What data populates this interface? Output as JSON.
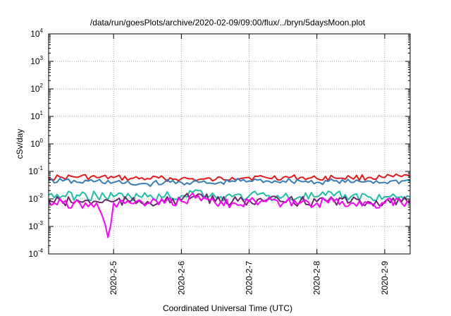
{
  "chart_data": {
    "type": "line",
    "title": "/data/run/goesPlots/archive/2020-02-09/09:00/flux/../bryn/5daysMoon.plot",
    "xlabel": "Coordinated Universal Time (UTC)",
    "ylabel": "cSv/day",
    "y_scale": "log",
    "ylim": [
      0.0001,
      10000
    ],
    "xlim": [
      "2020-02-04T01:00",
      "2020-02-09T09:00"
    ],
    "grid": true,
    "y_ticks": [
      {
        "base": "10",
        "exp": "-4",
        "value": 0.0001
      },
      {
        "base": "10",
        "exp": "-3",
        "value": 0.001
      },
      {
        "base": "10",
        "exp": "-2",
        "value": 0.01
      },
      {
        "base": "10",
        "exp": "-1",
        "value": 0.1
      },
      {
        "base": "10",
        "exp": "0",
        "value": 1
      },
      {
        "base": "10",
        "exp": "1",
        "value": 10
      },
      {
        "base": "10",
        "exp": "2",
        "value": 100
      },
      {
        "base": "10",
        "exp": "3",
        "value": 1000
      },
      {
        "base": "10",
        "exp": "4",
        "value": 10000
      }
    ],
    "x_ticks": [
      {
        "label": "2020-2-5",
        "value": "2020-02-05T00:00"
      },
      {
        "label": "2020-2-6",
        "value": "2020-02-06T00:00"
      },
      {
        "label": "2020-2-7",
        "value": "2020-02-07T00:00"
      },
      {
        "label": "2020-2-8",
        "value": "2020-02-08T00:00"
      },
      {
        "label": "2020-2-9",
        "value": "2020-02-09T00:00"
      }
    ],
    "series": [
      {
        "color": "#e41a1c",
        "x": [
          "2020-02-04T01:00",
          "2020-02-04T06:00",
          "2020-02-04T12:00",
          "2020-02-04T18:00",
          "2020-02-05T00:00",
          "2020-02-05T06:00",
          "2020-02-05T12:00",
          "2020-02-05T18:00",
          "2020-02-06T00:00",
          "2020-02-06T06:00",
          "2020-02-06T12:00",
          "2020-02-06T18:00",
          "2020-02-07T00:00",
          "2020-02-07T06:00",
          "2020-02-07T12:00",
          "2020-02-07T18:00",
          "2020-02-08T00:00",
          "2020-02-08T06:00",
          "2020-02-08T12:00",
          "2020-02-08T18:00",
          "2020-02-09T00:00",
          "2020-02-09T06:00",
          "2020-02-09T09:00"
        ],
        "y": [
          0.06,
          0.06,
          0.065,
          0.06,
          0.06,
          0.055,
          0.055,
          0.055,
          0.055,
          0.05,
          0.05,
          0.06,
          0.06,
          0.06,
          0.06,
          0.06,
          0.055,
          0.06,
          0.06,
          0.06,
          0.06,
          0.065,
          0.065
        ]
      },
      {
        "color": "#377eb8",
        "x": [
          "2020-02-04T01:00",
          "2020-02-04T06:00",
          "2020-02-04T12:00",
          "2020-02-04T18:00",
          "2020-02-05T00:00",
          "2020-02-05T06:00",
          "2020-02-05T12:00",
          "2020-02-05T18:00",
          "2020-02-06T00:00",
          "2020-02-06T06:00",
          "2020-02-06T12:00",
          "2020-02-06T18:00",
          "2020-02-07T00:00",
          "2020-02-07T06:00",
          "2020-02-07T12:00",
          "2020-02-07T18:00",
          "2020-02-08T00:00",
          "2020-02-08T06:00",
          "2020-02-08T12:00",
          "2020-02-08T18:00",
          "2020-02-09T00:00",
          "2020-02-09T06:00",
          "2020-02-09T09:00"
        ],
        "y": [
          0.045,
          0.045,
          0.04,
          0.045,
          0.04,
          0.035,
          0.035,
          0.04,
          0.04,
          0.04,
          0.035,
          0.045,
          0.045,
          0.045,
          0.045,
          0.045,
          0.04,
          0.045,
          0.04,
          0.045,
          0.04,
          0.045,
          0.045
        ]
      },
      {
        "color": "#1fbfa5",
        "x": [
          "2020-02-04T01:00",
          "2020-02-04T06:00",
          "2020-02-04T12:00",
          "2020-02-04T18:00",
          "2020-02-05T00:00",
          "2020-02-05T06:00",
          "2020-02-05T12:00",
          "2020-02-05T18:00",
          "2020-02-06T00:00",
          "2020-02-06T06:00",
          "2020-02-06T12:00",
          "2020-02-06T18:00",
          "2020-02-07T00:00",
          "2020-02-07T06:00",
          "2020-02-07T12:00",
          "2020-02-07T18:00",
          "2020-02-08T00:00",
          "2020-02-08T06:00",
          "2020-02-08T12:00",
          "2020-02-08T18:00",
          "2020-02-09T00:00",
          "2020-02-09T06:00",
          "2020-02-09T09:00"
        ],
        "y": [
          0.014,
          0.013,
          0.013,
          0.013,
          0.012,
          0.012,
          0.012,
          0.012,
          0.013,
          0.02,
          0.012,
          0.012,
          0.013,
          0.013,
          0.012,
          0.012,
          0.012,
          0.013,
          0.012,
          0.012,
          0.012,
          0.012,
          0.012
        ]
      },
      {
        "color": "#6b2a6e",
        "x": [
          "2020-02-04T01:00",
          "2020-02-04T06:00",
          "2020-02-04T12:00",
          "2020-02-04T18:00",
          "2020-02-05T00:00",
          "2020-02-05T06:00",
          "2020-02-05T12:00",
          "2020-02-05T18:00",
          "2020-02-06T00:00",
          "2020-02-06T06:00",
          "2020-02-06T12:00",
          "2020-02-06T18:00",
          "2020-02-07T00:00",
          "2020-02-07T06:00",
          "2020-02-07T12:00",
          "2020-02-07T18:00",
          "2020-02-08T00:00",
          "2020-02-08T06:00",
          "2020-02-08T12:00",
          "2020-02-08T18:00",
          "2020-02-09T00:00",
          "2020-02-09T06:00",
          "2020-02-09T09:00"
        ],
        "y": [
          0.009,
          0.008,
          0.008,
          0.008,
          0.008,
          0.008,
          0.008,
          0.008,
          0.009,
          0.015,
          0.008,
          0.008,
          0.009,
          0.009,
          0.008,
          0.008,
          0.008,
          0.009,
          0.008,
          0.008,
          0.008,
          0.008,
          0.008
        ]
      },
      {
        "color": "#ff00ff",
        "x": [
          "2020-02-04T01:00",
          "2020-02-04T06:00",
          "2020-02-04T12:00",
          "2020-02-04T18:00",
          "2020-02-04T22:00",
          "2020-02-05T00:00",
          "2020-02-05T06:00",
          "2020-02-05T12:00",
          "2020-02-05T18:00",
          "2020-02-06T00:00",
          "2020-02-06T06:00",
          "2020-02-06T12:00",
          "2020-02-06T18:00",
          "2020-02-07T00:00",
          "2020-02-07T06:00",
          "2020-02-07T12:00",
          "2020-02-07T18:00",
          "2020-02-08T00:00",
          "2020-02-08T06:00",
          "2020-02-08T12:00",
          "2020-02-08T18:00",
          "2020-02-09T00:00",
          "2020-02-09T06:00",
          "2020-02-09T09:00"
        ],
        "y": [
          0.008,
          0.007,
          0.007,
          0.007,
          0.0004,
          0.007,
          0.007,
          0.007,
          0.007,
          0.008,
          0.013,
          0.007,
          0.007,
          0.008,
          0.008,
          0.007,
          0.007,
          0.007,
          0.008,
          0.007,
          0.007,
          0.007,
          0.007,
          0.007
        ]
      }
    ]
  }
}
